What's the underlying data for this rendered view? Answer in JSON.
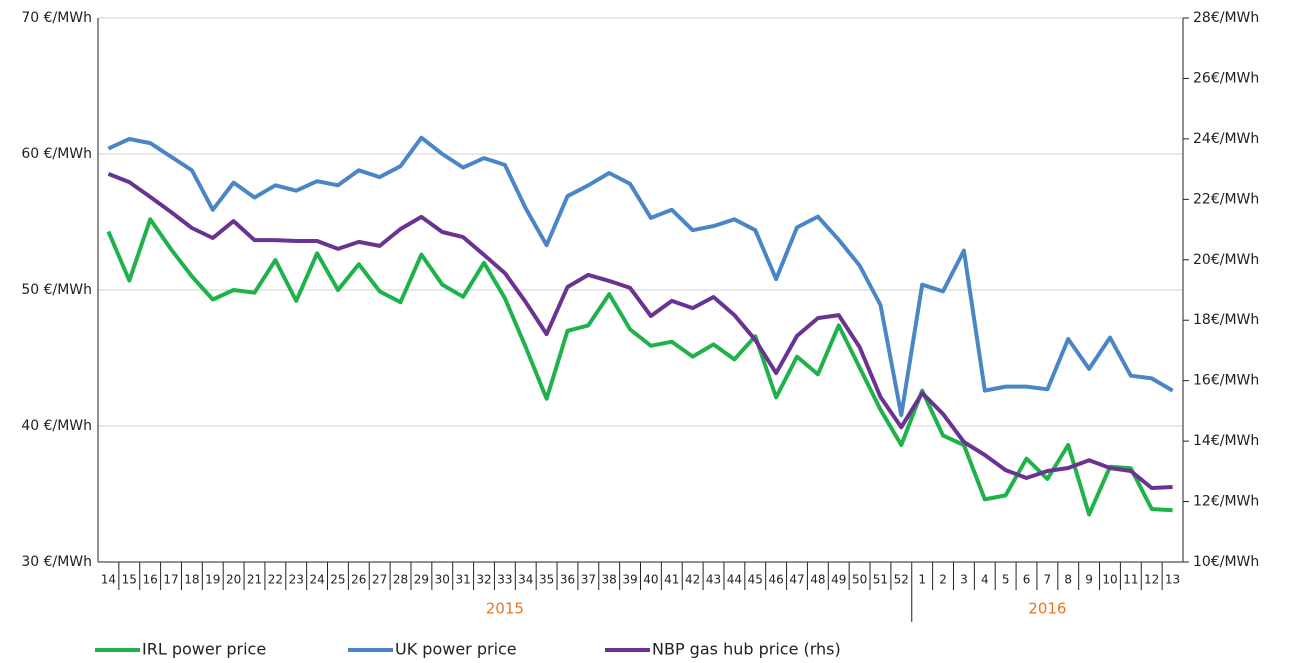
{
  "chart_data": {
    "type": "line",
    "groups": [
      {
        "label": "2015",
        "categories": [
          "14",
          "15",
          "16",
          "17",
          "18",
          "19",
          "20",
          "21",
          "22",
          "23",
          "24",
          "25",
          "26",
          "27",
          "28",
          "29",
          "30",
          "31",
          "32",
          "33",
          "34",
          "35",
          "36",
          "37",
          "38",
          "39",
          "40",
          "41",
          "42",
          "43",
          "44",
          "45",
          "46",
          "47",
          "48",
          "49",
          "50",
          "51",
          "52"
        ]
      },
      {
        "label": "2016",
        "categories": [
          "1",
          "2",
          "3",
          "4",
          "5",
          "6",
          "7",
          "8",
          "9",
          "10",
          "11",
          "12",
          "13"
        ]
      }
    ],
    "series": [
      {
        "name": "IRL power price",
        "color": "#20b24a",
        "values": [
          54.3,
          50.7,
          55.2,
          53.0,
          51.0,
          49.3,
          50.0,
          49.8,
          52.2,
          49.2,
          52.7,
          50.0,
          51.9,
          49.9,
          49.1,
          52.6,
          50.4,
          49.5,
          52.0,
          49.4,
          45.8,
          42.0,
          47.0,
          47.4,
          49.7,
          47.1,
          45.9,
          46.2,
          45.1,
          46.0,
          44.9,
          46.6,
          42.1,
          45.1,
          43.8,
          47.4,
          44.3,
          41.2,
          38.6,
          42.6,
          39.3,
          38.6,
          34.6,
          34.9,
          37.6,
          36.1,
          38.6,
          33.5,
          37.0,
          36.9,
          33.9,
          33.8
        ]
      },
      {
        "name": "UK power price",
        "color": "#4a86c5",
        "values": [
          60.4,
          61.1,
          60.8,
          59.8,
          58.8,
          55.9,
          57.9,
          56.8,
          57.7,
          57.3,
          58.0,
          57.7,
          58.8,
          58.3,
          59.1,
          61.2,
          60.0,
          59.0,
          59.7,
          59.2,
          56.0,
          53.3,
          56.9,
          57.7,
          58.6,
          57.8,
          55.3,
          55.9,
          54.4,
          54.7,
          55.2,
          54.4,
          50.8,
          54.6,
          55.4,
          53.7,
          51.8,
          48.9,
          40.8,
          50.4,
          49.9,
          52.9,
          42.6,
          42.9,
          42.9,
          42.7,
          46.4,
          44.2,
          46.5,
          43.7,
          43.5,
          42.6
        ]
      },
      {
        "name": "NBP gas hub price (rhs)",
        "color": "#6a3291",
        "axis": "y2",
        "values": [
          22.84,
          22.57,
          22.08,
          21.58,
          21.05,
          20.72,
          21.28,
          20.65,
          20.65,
          20.62,
          20.62,
          20.36,
          20.59,
          20.46,
          21.02,
          21.42,
          20.92,
          20.75,
          20.16,
          19.56,
          18.6,
          17.54,
          19.1,
          19.5,
          19.3,
          19.07,
          18.14,
          18.64,
          18.4,
          18.77,
          18.17,
          17.35,
          16.25,
          17.48,
          18.07,
          18.17,
          17.11,
          15.46,
          14.46,
          15.59,
          14.9,
          13.97,
          13.54,
          13.04,
          12.78,
          13.01,
          13.11,
          13.37,
          13.11,
          13.01,
          12.45,
          12.48
        ]
      }
    ],
    "ylim": [
      30,
      70
    ],
    "yticks": [
      {
        "value": 30,
        "label": "30 €/MWh"
      },
      {
        "value": 40,
        "label": "40 €/MWh"
      },
      {
        "value": 50,
        "label": "50 €/MWh"
      },
      {
        "value": 60,
        "label": "60 €/MWh"
      },
      {
        "value": 70,
        "label": "70 €/MWh"
      }
    ],
    "y2lim": [
      10,
      28
    ],
    "y2ticks": [
      {
        "value": 10,
        "label": "10€/MWh"
      },
      {
        "value": 12,
        "label": "12€/MWh"
      },
      {
        "value": 14,
        "label": "14€/MWh"
      },
      {
        "value": 16,
        "label": "16€/MWh"
      },
      {
        "value": 18,
        "label": "18€/MWh"
      },
      {
        "value": 20,
        "label": "20€/MWh"
      },
      {
        "value": 22,
        "label": "22€/MWh"
      },
      {
        "value": 24,
        "label": "24€/MWh"
      },
      {
        "value": 26,
        "label": "26€/MWh"
      },
      {
        "value": 28,
        "label": "28€/MWh"
      }
    ],
    "grid": true,
    "legend": "bottom"
  }
}
